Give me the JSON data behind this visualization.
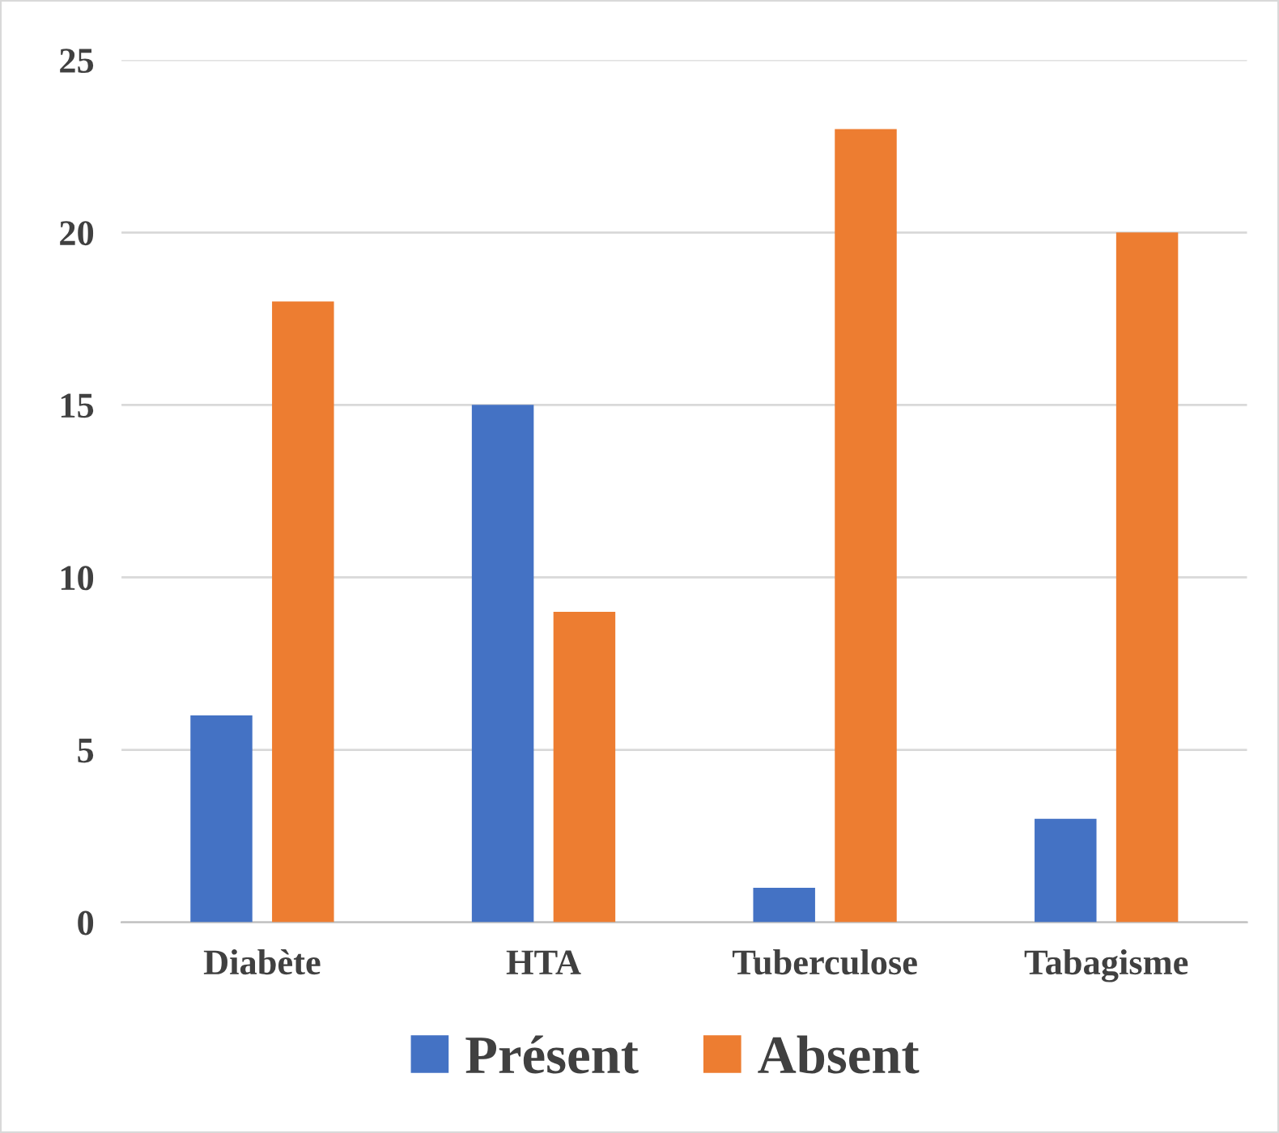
{
  "chart_data": {
    "type": "bar",
    "categories": [
      "Diabète",
      "HTA",
      "Tuberculose",
      "Tabagisme"
    ],
    "series": [
      {
        "name": "Présent",
        "color": "#4472c4",
        "values": [
          6,
          15,
          1,
          3
        ]
      },
      {
        "name": "Absent",
        "color": "#ed7d31",
        "values": [
          18,
          9,
          23,
          20
        ]
      }
    ],
    "ylim": [
      0,
      25
    ],
    "yticks": [
      0,
      5,
      10,
      15,
      20,
      25
    ],
    "grid": "y",
    "legend": "bottom"
  }
}
